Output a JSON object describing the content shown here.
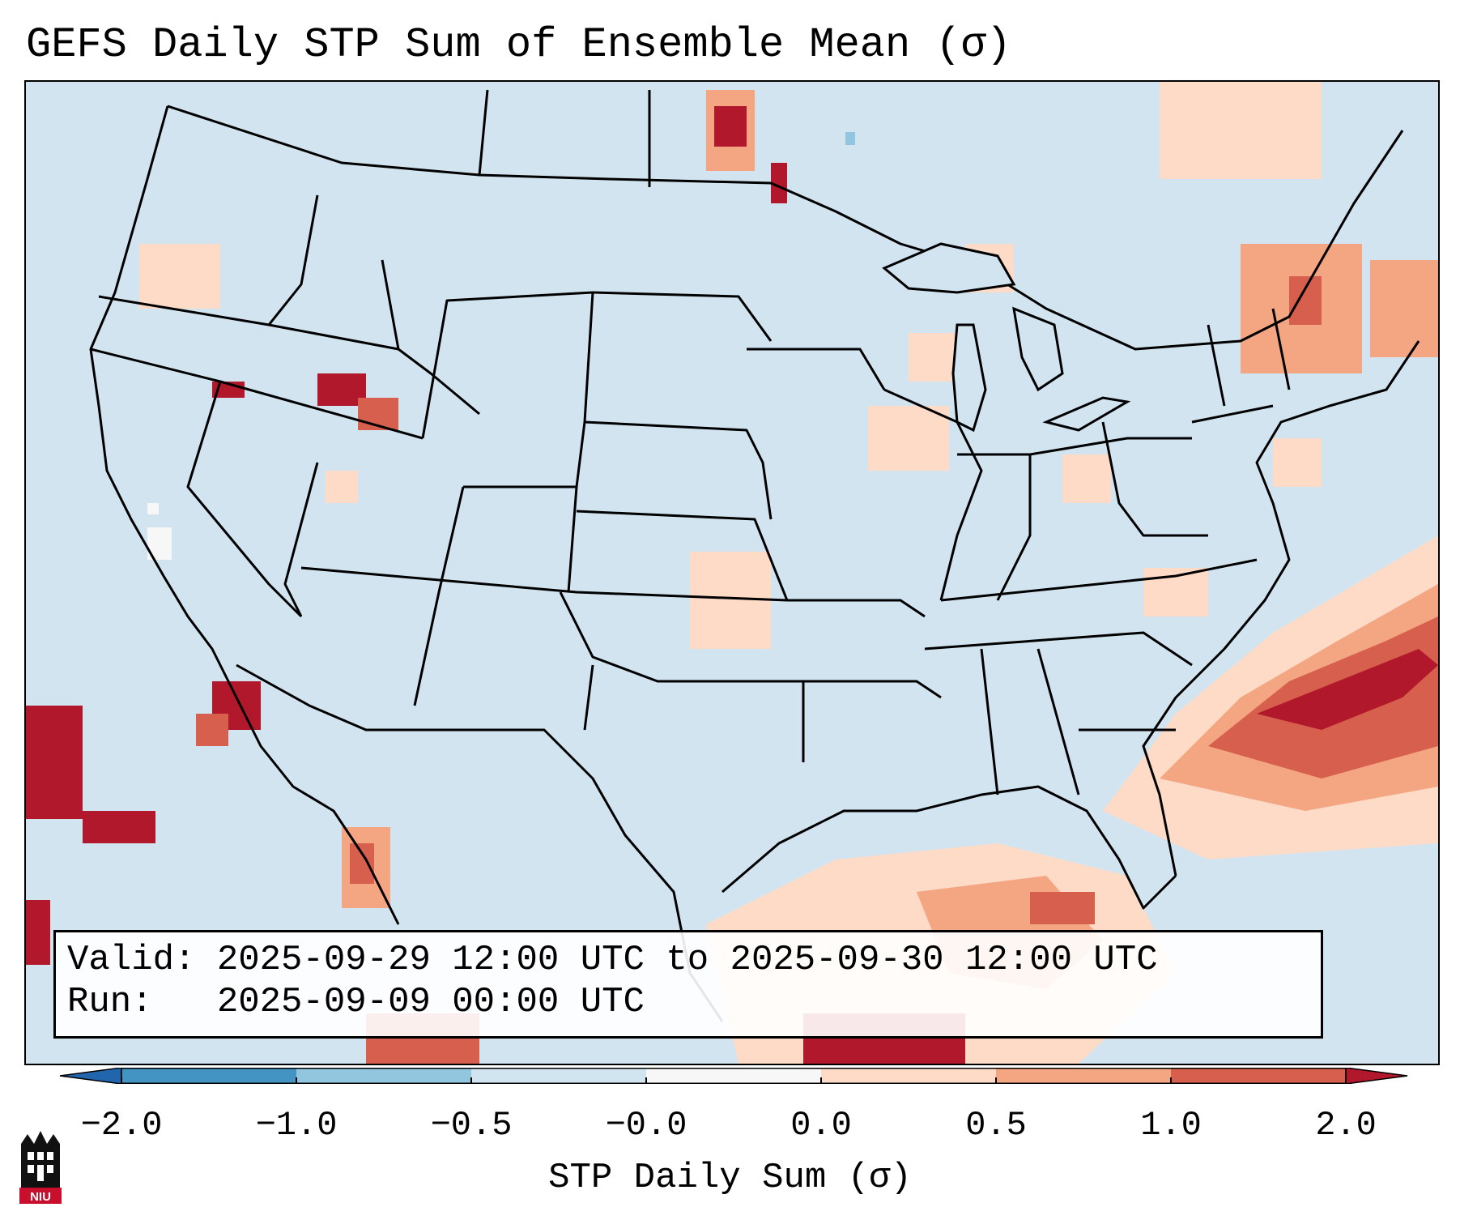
{
  "header": {
    "title": "GEFS Daily STP Sum of Ensemble Mean (σ)"
  },
  "map": {
    "description_layer": "contiguous-us-states",
    "ocean_color": "#d2e4f0",
    "border_color": "#000000"
  },
  "info_box": {
    "valid_line": "Valid: 2025-09-29 12:00 UTC to 2025-09-30 12:00 UTC",
    "run_line": "Run:   2025-09-09 00:00 UTC"
  },
  "colorbar": {
    "title": "STP Daily Sum (σ)",
    "tick_labels": [
      "−2.0",
      "−1.0",
      "−0.5",
      "−0.0",
      "0.0",
      "0.5",
      "1.0",
      "2.0"
    ],
    "bins": [
      {
        "range": "<-2.0",
        "color": "#2166ac"
      },
      {
        "range": "-2.0 to -1.0",
        "color": "#4393c3"
      },
      {
        "range": "-1.0 to -0.5",
        "color": "#92c5de"
      },
      {
        "range": "-0.5 to -0.0",
        "color": "#d1e5f0"
      },
      {
        "range": "-0.0 to 0.0",
        "color": "#f7f7f7"
      },
      {
        "range": "0.0 to 0.5",
        "color": "#fddbc7"
      },
      {
        "range": "0.5 to 1.0",
        "color": "#f4a582"
      },
      {
        "range": "1.0 to 2.0",
        "color": "#d6604d"
      },
      {
        "range": ">2.0",
        "color": "#b2182b"
      }
    ]
  },
  "logo": {
    "icon": "niu-logo-icon",
    "text": "NIU",
    "color": "#c8102e"
  }
}
